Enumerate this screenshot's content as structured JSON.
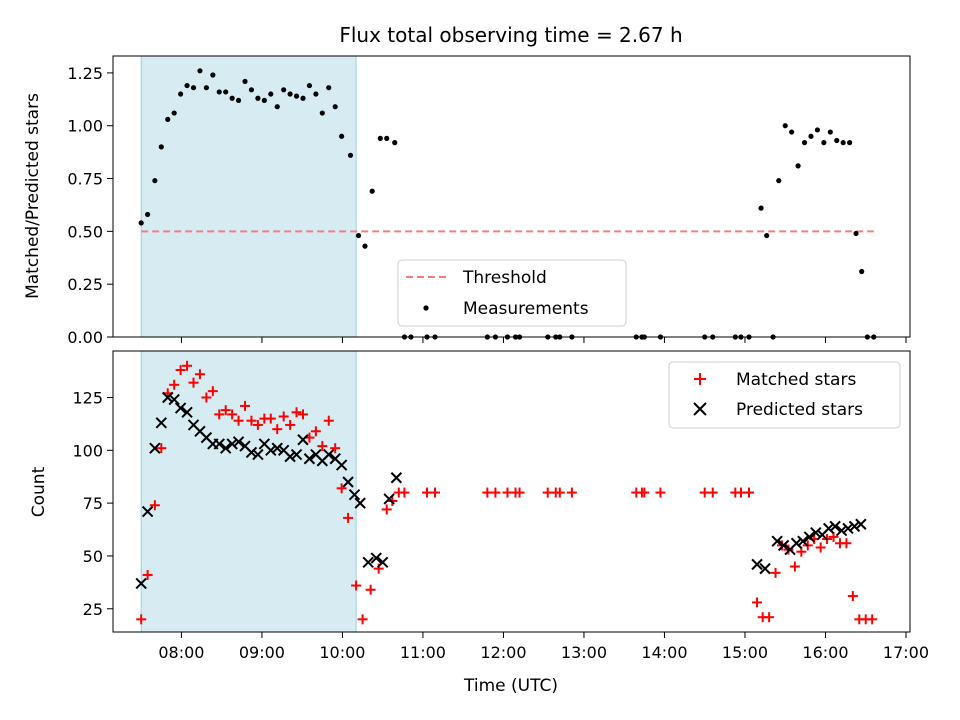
{
  "chart_data": [
    {
      "type": "scatter",
      "title": "Flux total observing time = 2.67 h",
      "xlabel": "",
      "ylabel": "Matched/Predicted stars",
      "xlim": [
        7.15,
        17.05
      ],
      "ylim": [
        0,
        1.33
      ],
      "yticks": [
        0.0,
        0.25,
        0.5,
        0.75,
        1.0,
        1.25
      ],
      "ytick_labels": [
        "0.00",
        "0.25",
        "0.50",
        "0.75",
        "1.00",
        "1.25"
      ],
      "shaded_span": [
        7.5,
        10.17
      ],
      "legend": {
        "position": "lower-center",
        "entries": [
          "Threshold",
          "Measurements"
        ]
      },
      "series": [
        {
          "name": "Threshold",
          "kind": "dashed-line",
          "color": "#f08080",
          "x": [
            7.5,
            16.6
          ],
          "y": [
            0.5,
            0.5
          ]
        },
        {
          "name": "Measurements",
          "kind": "dot",
          "color": "#000000",
          "points": [
            [
              7.5,
              0.54
            ],
            [
              7.58,
              0.58
            ],
            [
              7.67,
              0.74
            ],
            [
              7.75,
              0.9
            ],
            [
              7.83,
              1.03
            ],
            [
              7.91,
              1.06
            ],
            [
              7.99,
              1.15
            ],
            [
              8.07,
              1.19
            ],
            [
              8.15,
              1.18
            ],
            [
              8.23,
              1.26
            ],
            [
              8.31,
              1.18
            ],
            [
              8.39,
              1.24
            ],
            [
              8.47,
              1.16
            ],
            [
              8.55,
              1.16
            ],
            [
              8.63,
              1.13
            ],
            [
              8.71,
              1.12
            ],
            [
              8.79,
              1.21
            ],
            [
              8.87,
              1.17
            ],
            [
              8.95,
              1.13
            ],
            [
              9.03,
              1.12
            ],
            [
              9.11,
              1.15
            ],
            [
              9.19,
              1.09
            ],
            [
              9.27,
              1.17
            ],
            [
              9.35,
              1.15
            ],
            [
              9.43,
              1.14
            ],
            [
              9.51,
              1.13
            ],
            [
              9.59,
              1.19
            ],
            [
              9.67,
              1.15
            ],
            [
              9.75,
              1.06
            ],
            [
              9.83,
              1.18
            ],
            [
              9.91,
              1.09
            ],
            [
              9.99,
              0.95
            ],
            [
              10.1,
              0.86
            ],
            [
              10.2,
              0.48
            ],
            [
              10.28,
              0.43
            ],
            [
              10.37,
              0.69
            ],
            [
              10.47,
              0.94
            ],
            [
              10.55,
              0.94
            ],
            [
              10.65,
              0.92
            ],
            [
              10.77,
              0.0
            ],
            [
              10.85,
              0.0
            ],
            [
              11.05,
              0.0
            ],
            [
              11.15,
              0.0
            ],
            [
              11.8,
              0.0
            ],
            [
              11.9,
              0.0
            ],
            [
              12.05,
              0.0
            ],
            [
              12.15,
              0.0
            ],
            [
              12.2,
              0.0
            ],
            [
              12.55,
              0.0
            ],
            [
              12.65,
              0.0
            ],
            [
              12.7,
              0.0
            ],
            [
              12.85,
              0.0
            ],
            [
              13.65,
              0.0
            ],
            [
              13.72,
              0.0
            ],
            [
              13.75,
              0.0
            ],
            [
              13.95,
              0.0
            ],
            [
              14.5,
              0.0
            ],
            [
              14.6,
              0.0
            ],
            [
              14.88,
              0.0
            ],
            [
              14.95,
              0.0
            ],
            [
              15.05,
              0.0
            ],
            [
              15.2,
              0.61
            ],
            [
              15.27,
              0.48
            ],
            [
              15.35,
              0.0
            ],
            [
              15.42,
              0.74
            ],
            [
              15.5,
              1.0
            ],
            [
              15.58,
              0.97
            ],
            [
              15.66,
              0.81
            ],
            [
              15.74,
              0.92
            ],
            [
              15.82,
              0.95
            ],
            [
              15.9,
              0.98
            ],
            [
              15.98,
              0.92
            ],
            [
              16.06,
              0.97
            ],
            [
              16.14,
              0.93
            ],
            [
              16.22,
              0.92
            ],
            [
              16.3,
              0.92
            ],
            [
              16.38,
              0.49
            ],
            [
              16.45,
              0.31
            ],
            [
              16.52,
              0.0
            ],
            [
              16.6,
              0.0
            ]
          ]
        }
      ]
    },
    {
      "type": "scatter",
      "title": "",
      "xlabel": "Time (UTC)",
      "ylabel": "Count",
      "xlim": [
        7.15,
        17.05
      ],
      "ylim": [
        14,
        147
      ],
      "yticks": [
        25,
        50,
        75,
        100,
        125
      ],
      "ytick_labels": [
        "25",
        "50",
        "75",
        "100",
        "125"
      ],
      "xticks": [
        8,
        9,
        10,
        11,
        12,
        13,
        14,
        15,
        16,
        17
      ],
      "xtick_labels": [
        "08:00",
        "09:00",
        "10:00",
        "11:00",
        "12:00",
        "13:00",
        "14:00",
        "15:00",
        "16:00",
        "17:00"
      ],
      "shaded_span": [
        7.5,
        10.17
      ],
      "legend": {
        "position": "top-right",
        "entries": [
          "Matched stars",
          "Predicted stars"
        ]
      },
      "series": [
        {
          "name": "Matched stars",
          "kind": "plus",
          "color": "#ff0000",
          "points": [
            [
              7.5,
              20
            ],
            [
              7.58,
              41
            ],
            [
              7.67,
              74
            ],
            [
              7.75,
              101
            ],
            [
              7.83,
              127
            ],
            [
              7.91,
              131
            ],
            [
              7.99,
              138
            ],
            [
              8.07,
              140
            ],
            [
              8.15,
              132
            ],
            [
              8.23,
              136
            ],
            [
              8.31,
              125
            ],
            [
              8.39,
              128
            ],
            [
              8.47,
              117
            ],
            [
              8.55,
              119
            ],
            [
              8.63,
              117
            ],
            [
              8.71,
              114
            ],
            [
              8.79,
              121
            ],
            [
              8.87,
              114
            ],
            [
              8.95,
              112
            ],
            [
              9.03,
              115
            ],
            [
              9.11,
              115
            ],
            [
              9.19,
              110
            ],
            [
              9.27,
              116
            ],
            [
              9.35,
              112
            ],
            [
              9.43,
              118
            ],
            [
              9.51,
              117
            ],
            [
              9.59,
              106
            ],
            [
              9.67,
              109
            ],
            [
              9.75,
              102
            ],
            [
              9.83,
              114
            ],
            [
              9.91,
              101
            ],
            [
              9.99,
              82
            ],
            [
              10.07,
              68
            ],
            [
              10.17,
              36
            ],
            [
              10.25,
              20
            ],
            [
              10.35,
              34
            ],
            [
              10.45,
              44
            ],
            [
              10.55,
              72
            ],
            [
              10.62,
              76
            ],
            [
              10.7,
              80
            ],
            [
              10.77,
              80
            ],
            [
              11.05,
              80
            ],
            [
              11.15,
              80
            ],
            [
              11.8,
              80
            ],
            [
              11.9,
              80
            ],
            [
              12.05,
              80
            ],
            [
              12.15,
              80
            ],
            [
              12.2,
              80
            ],
            [
              12.55,
              80
            ],
            [
              12.65,
              80
            ],
            [
              12.7,
              80
            ],
            [
              12.85,
              80
            ],
            [
              13.65,
              80
            ],
            [
              13.72,
              80
            ],
            [
              13.75,
              80
            ],
            [
              13.95,
              80
            ],
            [
              14.5,
              80
            ],
            [
              14.6,
              80
            ],
            [
              14.88,
              80
            ],
            [
              14.95,
              80
            ],
            [
              15.05,
              80
            ],
            [
              15.15,
              28
            ],
            [
              15.22,
              21
            ],
            [
              15.3,
              21
            ],
            [
              15.38,
              42
            ],
            [
              15.46,
              55
            ],
            [
              15.54,
              53
            ],
            [
              15.62,
              45
            ],
            [
              15.7,
              52
            ],
            [
              15.78,
              55
            ],
            [
              15.86,
              58
            ],
            [
              15.94,
              54
            ],
            [
              16.02,
              58
            ],
            [
              16.1,
              59
            ],
            [
              16.18,
              56
            ],
            [
              16.26,
              56
            ],
            [
              16.34,
              31
            ],
            [
              16.42,
              20
            ],
            [
              16.5,
              20
            ],
            [
              16.58,
              20
            ]
          ]
        },
        {
          "name": "Predicted stars",
          "kind": "x",
          "color": "#000000",
          "points": [
            [
              7.5,
              37
            ],
            [
              7.58,
              71
            ],
            [
              7.67,
              101
            ],
            [
              7.75,
              113
            ],
            [
              7.83,
              125
            ],
            [
              7.91,
              124
            ],
            [
              7.99,
              120
            ],
            [
              8.07,
              118
            ],
            [
              8.15,
              112
            ],
            [
              8.23,
              109
            ],
            [
              8.31,
              106
            ],
            [
              8.39,
              103
            ],
            [
              8.47,
              103
            ],
            [
              8.55,
              101
            ],
            [
              8.63,
              103
            ],
            [
              8.71,
              104
            ],
            [
              8.79,
              102
            ],
            [
              8.87,
              99
            ],
            [
              8.95,
              98
            ],
            [
              9.03,
              103
            ],
            [
              9.11,
              100
            ],
            [
              9.19,
              101
            ],
            [
              9.27,
              100
            ],
            [
              9.35,
              97
            ],
            [
              9.43,
              98
            ],
            [
              9.51,
              105
            ],
            [
              9.59,
              96
            ],
            [
              9.67,
              98
            ],
            [
              9.75,
              95
            ],
            [
              9.83,
              98
            ],
            [
              9.91,
              96
            ],
            [
              9.99,
              93
            ],
            [
              10.07,
              85
            ],
            [
              10.15,
              79
            ],
            [
              10.22,
              75
            ],
            [
              10.32,
              47
            ],
            [
              10.42,
              49
            ],
            [
              10.5,
              47
            ],
            [
              10.58,
              77
            ],
            [
              10.67,
              87
            ],
            [
              15.15,
              46
            ],
            [
              15.25,
              44
            ],
            [
              15.4,
              57
            ],
            [
              15.48,
              55
            ],
            [
              15.56,
              53
            ],
            [
              15.64,
              56
            ],
            [
              15.72,
              57
            ],
            [
              15.8,
              59
            ],
            [
              15.88,
              61
            ],
            [
              15.96,
              60
            ],
            [
              16.04,
              63
            ],
            [
              16.12,
              64
            ],
            [
              16.2,
              62
            ],
            [
              16.28,
              63
            ],
            [
              16.36,
              64
            ],
            [
              16.44,
              65
            ]
          ]
        }
      ]
    }
  ]
}
